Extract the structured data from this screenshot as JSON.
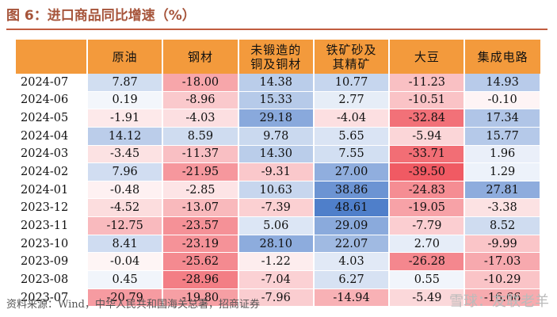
{
  "figure_title": "图 6：进口商品同比增速（%）",
  "source_note": "资料来源：Wind，中华人民共和国海关总署，招商证券",
  "watermark": "雪球：友联老羊",
  "chart_data": {
    "type": "table",
    "columns": [
      "原油",
      "钢材",
      "未锻造的铜及铜材",
      "铁矿砂及其精矿",
      "大豆",
      "集成电路"
    ],
    "header_lines": [
      [
        "原油"
      ],
      [
        "钢材"
      ],
      [
        "未锻造的",
        "铜及铜材"
      ],
      [
        "铁矿砂及",
        "其精矿"
      ],
      [
        "大豆"
      ],
      [
        "集成电路"
      ]
    ],
    "rows": [
      {
        "date": "2024-07",
        "values": [
          7.87,
          -18.0,
          14.38,
          10.77,
          -11.23,
          14.93
        ]
      },
      {
        "date": "2024-06",
        "values": [
          0.19,
          -8.96,
          15.33,
          2.77,
          -10.51,
          -0.1
        ]
      },
      {
        "date": "2024-05",
        "values": [
          -1.91,
          -4.03,
          29.18,
          -4.04,
          -32.84,
          17.34
        ]
      },
      {
        "date": "2024-04",
        "values": [
          14.12,
          8.59,
          9.78,
          5.65,
          -5.94,
          15.77
        ]
      },
      {
        "date": "2024-03",
        "values": [
          -3.45,
          -11.37,
          14.3,
          7.55,
          -33.71,
          1.96
        ]
      },
      {
        "date": "2024-02",
        "values": [
          7.96,
          -21.95,
          -9.31,
          27.0,
          -39.5,
          1.29
        ]
      },
      {
        "date": "2024-01",
        "values": [
          -0.48,
          -2.85,
          10.63,
          38.86,
          -24.83,
          27.81
        ]
      },
      {
        "date": "2023-12",
        "values": [
          -4.52,
          -13.07,
          -7.39,
          48.61,
          -19.05,
          -3.38
        ]
      },
      {
        "date": "2023-11",
        "values": [
          -12.75,
          -23.57,
          5.06,
          29.09,
          -7.79,
          8.52
        ]
      },
      {
        "date": "2023-10",
        "values": [
          8.41,
          -23.19,
          28.1,
          22.07,
          2.7,
          -9.99
        ]
      },
      {
        "date": "2023-09",
        "values": [
          -0.04,
          -25.62,
          -1.22,
          4.03,
          -26.28,
          -17.03
        ]
      },
      {
        "date": "2023-08",
        "values": [
          0.45,
          -28.96,
          -7.04,
          6.27,
          0.55,
          -10.29
        ]
      },
      {
        "date": "2023-07",
        "values": [
          -20.79,
          -19.8,
          -7.96,
          -14.94,
          -5.49,
          -16.66
        ]
      }
    ],
    "colors": {
      "header_bg": "#f39a3c",
      "positive": "#4f7fca",
      "negative": "#f05a63",
      "title": "#a6543a"
    }
  }
}
